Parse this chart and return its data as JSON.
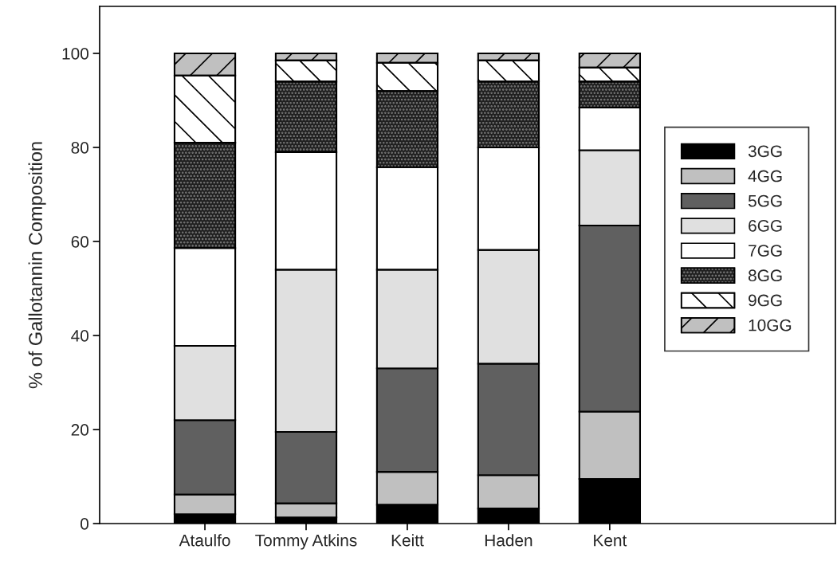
{
  "chart_data": {
    "type": "bar",
    "stacked": true,
    "ylabel": "% of Gallotannin Composition",
    "categories": [
      "Ataulfo",
      "Tommy Atkins",
      "Keitt",
      "Haden",
      "Kent"
    ],
    "ylim": [
      0,
      110
    ],
    "yticks": [
      0,
      20,
      40,
      60,
      80,
      100
    ],
    "grid": false,
    "legend": "right",
    "series": [
      {
        "name": "3GG",
        "color": "#000000",
        "values": [
          2.0,
          1.3,
          4.0,
          3.2,
          9.5
        ]
      },
      {
        "name": "4GG",
        "color": "#c0c0c0",
        "values": [
          4.2,
          3.0,
          7.0,
          7.1,
          14.3
        ]
      },
      {
        "name": "5GG",
        "color": "#606060",
        "values": [
          15.8,
          15.2,
          22.0,
          23.7,
          39.6
        ]
      },
      {
        "name": "6GG",
        "color": "#e0e0e0",
        "values": [
          15.8,
          34.5,
          21.0,
          24.2,
          16.0
        ]
      },
      {
        "name": "7GG",
        "color": "#ffffff",
        "values": [
          20.8,
          25.0,
          21.8,
          21.8,
          9.1
        ]
      },
      {
        "name": "8GG",
        "color": "#202020",
        "values": [
          22.4,
          15.0,
          16.2,
          14.0,
          5.5
        ]
      },
      {
        "name": "9GG",
        "color": "#ffffff",
        "values": [
          14.3,
          4.5,
          6.0,
          4.5,
          3.0
        ]
      },
      {
        "name": "10GG",
        "color": "#c0c0c0",
        "values": [
          4.7,
          1.5,
          2.0,
          1.5,
          3.0
        ]
      }
    ]
  }
}
